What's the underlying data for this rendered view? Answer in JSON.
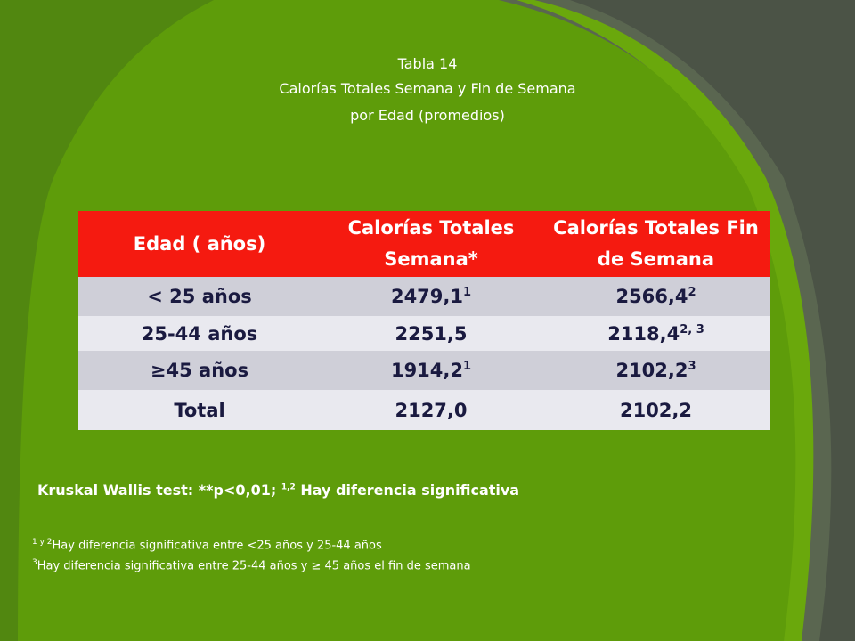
{
  "title": [
    "Tabla 14",
    "Calorías Totales Semana y Fin de Semana",
    "por Edad (promedios)"
  ],
  "table": {
    "header": [
      "Edad  ( años)",
      "Calorías Totales Semana*",
      "Calorías Totales Fin de Semana"
    ],
    "rows": [
      [
        {
          "text": "< 25 años"
        },
        {
          "text": "2479,1",
          "sup": "1"
        },
        {
          "text": "2566,4",
          "sup": "2"
        }
      ],
      [
        {
          "text": "25-44 años"
        },
        {
          "text": "2251,5"
        },
        {
          "text": "2118,4",
          "sup": "2, 3"
        }
      ],
      [
        {
          "text": "≥45 años"
        },
        {
          "text": "1914,2",
          "sup": "1"
        },
        {
          "text": "2102,2",
          "sup": "3"
        }
      ],
      [
        {
          "text": "Total"
        },
        {
          "text": "2127,0"
        },
        {
          "text": "2102,2"
        }
      ]
    ]
  },
  "test_note": {
    "text": "Kruskal Wallis test:  **p<0,01;",
    "sup": "1,2",
    "after": "Hay diferencia significativa"
  },
  "footnotes": [
    {
      "sup": "1 y 2",
      "text": "Hay diferencia significativa entre <25 años y 25-44 años"
    },
    {
      "sup": "3",
      "text": "Hay diferencia significativa entre 25-44 años y ≥ 45 años el fin de semana"
    }
  ]
}
